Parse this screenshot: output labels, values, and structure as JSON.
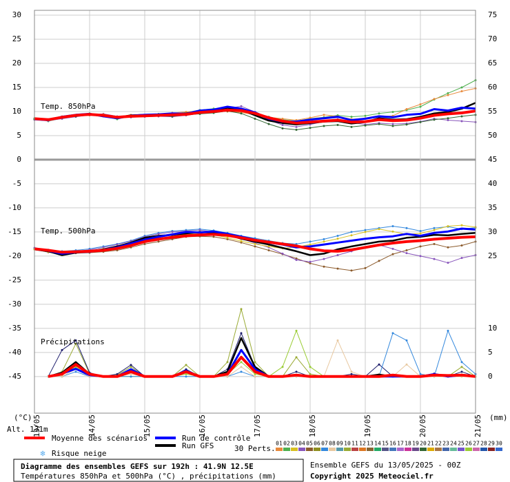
{
  "chart_data": {
    "type": "line",
    "title": "Diagramme des ensembles GEFS sur 192h : 41.9N 12.5E",
    "subtitle": "Températures 850hPa et 500hPa (°C) , précipitations (mm)",
    "run_info": "Ensemble GEFS du 13/05/2025 - 00Z",
    "copyright": "Copyright 2025 Meteociel.fr",
    "annotations": [
      "Temp. 850hPa",
      "Temp. 500hPa",
      "Précipitations"
    ],
    "y_unit": "(°C)",
    "y2_unit": "(mm)",
    "altitude": "Alt. 131m",
    "snow_label": "Risque neige",
    "perts_label": "30 Perts.",
    "categories": [
      "13/05",
      null,
      null,
      null,
      "14/05",
      null,
      null,
      null,
      "15/05",
      null,
      null,
      null,
      "16/05",
      null,
      null,
      null,
      "17/05",
      null,
      null,
      null,
      "18/05",
      null,
      null,
      null,
      "19/05",
      null,
      null,
      null,
      "20/05",
      null,
      null,
      null,
      "21/05"
    ],
    "ylim": [
      -52.6,
      31
    ],
    "yticks": [
      -45,
      -40,
      -35,
      -30,
      -25,
      -20,
      -15,
      -10,
      -5,
      0,
      5,
      10,
      15,
      20,
      25,
      30
    ],
    "y2lim": [
      -7.6,
      76
    ],
    "y2ticks": [
      0,
      5,
      10,
      25,
      30,
      35,
      40,
      45,
      50,
      55,
      60,
      65,
      70,
      75
    ],
    "grid": true,
    "legend": [
      {
        "name": "Moyenne des scénarios",
        "color": "#ff0000"
      },
      {
        "name": "Run de contrôle",
        "color": "#0000ff"
      },
      {
        "name": "Run GFS",
        "color": "#000000"
      }
    ],
    "perts": [
      {
        "label": "01",
        "color": "#e88a3c"
      },
      {
        "label": "02",
        "color": "#4fb04f"
      },
      {
        "label": "03",
        "color": "#d8c020"
      },
      {
        "label": "04",
        "color": "#8855bb"
      },
      {
        "label": "05",
        "color": "#8b5a2b"
      },
      {
        "label": "06",
        "color": "#8f8f20"
      },
      {
        "label": "07",
        "color": "#3388dd"
      },
      {
        "label": "08",
        "color": "#e8c8a0"
      },
      {
        "label": "09",
        "color": "#5599aa"
      },
      {
        "label": "10",
        "color": "#99aa33"
      },
      {
        "label": "11",
        "color": "#bb4444"
      },
      {
        "label": "12",
        "color": "#dd7722"
      },
      {
        "label": "13",
        "color": "#886633"
      },
      {
        "label": "14",
        "color": "#22aa66"
      },
      {
        "label": "15",
        "color": "#555588"
      },
      {
        "label": "16",
        "color": "#4477bb"
      },
      {
        "label": "17",
        "color": "#aa66cc"
      },
      {
        "label": "18",
        "color": "#cc3399"
      },
      {
        "label": "19",
        "color": "#6a4a8a"
      },
      {
        "label": "20",
        "color": "#336633"
      },
      {
        "label": "21",
        "color": "#ddaa00"
      },
      {
        "label": "22",
        "color": "#aa7744"
      },
      {
        "label": "23",
        "color": "#4466aa"
      },
      {
        "label": "24",
        "color": "#66bb99"
      },
      {
        "label": "25",
        "color": "#7755cc"
      },
      {
        "label": "26",
        "color": "#99cc33"
      },
      {
        "label": "27",
        "color": "#cc66aa"
      },
      {
        "label": "28",
        "color": "#2255aa"
      },
      {
        "label": "29",
        "color": "#882222"
      },
      {
        "label": "30",
        "color": "#3366cc"
      }
    ],
    "series": [
      {
        "color": "#4fb04f",
        "values": [
          8.6,
          8.0,
          8.6,
          9.3,
          9.6,
          9.0,
          8.4,
          9.1,
          9.2,
          9.5,
          9.4,
          9.8,
          10.3,
          10.6,
          10.8,
          10.4,
          9.7,
          8.9,
          8.3,
          8.0,
          8.5,
          8.8,
          9.2,
          8.9,
          9.1,
          9.6,
          9.9,
          10.3,
          11,
          12.5,
          13.8,
          15,
          16.5
        ]
      },
      {
        "color": "#8855bb",
        "values": [
          8.3,
          8.1,
          8.5,
          8.9,
          9.3,
          9.5,
          9.0,
          8.8,
          8.9,
          9.0,
          8.9,
          9.2,
          9.6,
          9.9,
          10.6,
          11.1,
          9.9,
          8.2,
          7.2,
          6.8,
          7.3,
          7.9,
          8.4,
          7.7,
          7.3,
          7.6,
          7.4,
          7.5,
          7.9,
          8.5,
          8.2,
          8.0,
          7.8
        ]
      },
      {
        "color": "#e88a3c",
        "values": [
          8.5,
          8.4,
          9.0,
          9.1,
          9.2,
          9.4,
          8.9,
          9.3,
          9.0,
          9.3,
          9.7,
          9.9,
          10.1,
          10.2,
          10.0,
          9.8,
          9.3,
          8.8,
          8.5,
          8.2,
          8.7,
          9.3,
          9.0,
          8.4,
          8.6,
          8.9,
          9.1,
          10.5,
          11.5,
          12.6,
          13.4,
          14.2,
          14.8
        ]
      },
      {
        "color": "#336633",
        "values": [
          8.4,
          8.2,
          8.7,
          9.0,
          9.4,
          9.1,
          8.6,
          8.9,
          9.2,
          9.1,
          9.0,
          9.3,
          9.5,
          9.7,
          10.1,
          9.6,
          8.5,
          7.4,
          6.5,
          6.2,
          6.6,
          7.0,
          7.2,
          6.8,
          7.1,
          7.4,
          7.0,
          7.3,
          7.8,
          8.3,
          8.6,
          9.0,
          9.3
        ]
      },
      {
        "color": "#000000",
        "values": [
          8.5,
          8.3,
          8.7,
          9.2,
          9.4,
          9.1,
          8.7,
          9.2,
          9.3,
          9.2,
          9.4,
          9.6,
          10.0,
          10.3,
          10.8,
          10.4,
          9.2,
          8.1,
          7.6,
          7.3,
          7.6,
          7.9,
          8.0,
          7.5,
          7.8,
          8.6,
          8.3,
          8.4,
          8.9,
          9.6,
          9.9,
          10.6,
          11.8
        ]
      },
      {
        "color": "#0000ff",
        "values": [
          8.4,
          8.2,
          8.9,
          9.3,
          9.5,
          9.0,
          8.6,
          9.1,
          9.3,
          9.4,
          9.6,
          9.5,
          10.2,
          10.4,
          11.0,
          10.6,
          9.8,
          8.5,
          7.9,
          7.9,
          8.3,
          8.6,
          8.9,
          8.2,
          8.5,
          9.0,
          8.8,
          9.3,
          9.5,
          10.5,
          10.2,
          10.8,
          10.6
        ]
      },
      {
        "color": "#ff0000",
        "values": [
          8.5,
          8.3,
          8.8,
          9.2,
          9.4,
          9.2,
          8.8,
          9.0,
          9.1,
          9.2,
          9.3,
          9.4,
          9.8,
          10.0,
          10.3,
          10.2,
          9.6,
          8.7,
          8.0,
          7.6,
          7.8,
          8.0,
          8.2,
          7.8,
          7.9,
          8.3,
          8.1,
          8.2,
          8.6,
          9.2,
          9.5,
          9.7,
          10.1
        ]
      },
      {
        "color": "#3388dd",
        "values": [
          -18.5,
          -18.7,
          -19.0,
          -18.8,
          -18.5,
          -18.0,
          -17.5,
          -16.8,
          -15.8,
          -15.2,
          -14.8,
          -14.6,
          -14.4,
          -14.7,
          -15.2,
          -15.8,
          -16.3,
          -16.8,
          -17.3,
          -17.5,
          -17.0,
          -16.5,
          -15.8,
          -15.0,
          -14.6,
          -14.2,
          -13.8,
          -14.2,
          -14.8,
          -14.2,
          -13.9,
          -14.4,
          -14.1
        ]
      },
      {
        "color": "#8b5a2b",
        "values": [
          -18.6,
          -19.2,
          -19.6,
          -19.4,
          -19.3,
          -19.1,
          -18.8,
          -18.2,
          -17.5,
          -17.0,
          -16.5,
          -16.0,
          -15.9,
          -16.0,
          -16.5,
          -17.2,
          -18.0,
          -18.8,
          -19.6,
          -20.5,
          -21.5,
          -22.2,
          -22.6,
          -23.0,
          -22.5,
          -21.0,
          -19.6,
          -18.8,
          -18.0,
          -17.5,
          -18.2,
          -17.8,
          -17.0
        ]
      },
      {
        "color": "#8855bb",
        "values": [
          -18.3,
          -18.8,
          -19.3,
          -19.0,
          -18.7,
          -18.2,
          -17.6,
          -16.9,
          -16.0,
          -15.4,
          -15.0,
          -14.8,
          -14.6,
          -15.0,
          -15.6,
          -16.4,
          -17.3,
          -18.2,
          -19.5,
          -20.8,
          -21.2,
          -20.6,
          -19.8,
          -19.0,
          -18.2,
          -17.7,
          -18.5,
          -19.4,
          -20.0,
          -20.6,
          -21.4,
          -20.4,
          -19.8
        ]
      },
      {
        "color": "#d8c020",
        "values": [
          -18.6,
          -19.1,
          -19.4,
          -19.1,
          -18.9,
          -18.5,
          -18.0,
          -17.5,
          -16.8,
          -16.4,
          -15.9,
          -15.5,
          -15.3,
          -15.6,
          -16.2,
          -16.9,
          -17.5,
          -18.0,
          -18.4,
          -18.1,
          -17.6,
          -17.0,
          -16.4,
          -15.7,
          -15.0,
          -14.4,
          -14.9,
          -15.5,
          -15.3,
          -14.6,
          -13.8,
          -13.6,
          -14.0
        ]
      },
      {
        "color": "#000000",
        "values": [
          -18.6,
          -19.0,
          -19.8,
          -19.3,
          -19.0,
          -18.6,
          -18.0,
          -17.2,
          -16.2,
          -15.8,
          -15.6,
          -15.3,
          -15.0,
          -15.2,
          -15.6,
          -16.4,
          -17.0,
          -17.6,
          -18.3,
          -19.0,
          -19.8,
          -19.5,
          -18.6,
          -18.0,
          -17.5,
          -17.0,
          -16.8,
          -16.2,
          -16.0,
          -15.6,
          -15.7,
          -15.4,
          -15.2
        ]
      },
      {
        "color": "#0000ff",
        "values": [
          -18.4,
          -18.9,
          -19.5,
          -19.2,
          -19.1,
          -18.7,
          -18.2,
          -17.4,
          -16.6,
          -16.0,
          -15.5,
          -15.0,
          -15.1,
          -14.9,
          -15.4,
          -16.0,
          -16.6,
          -17.2,
          -17.6,
          -18.2,
          -18.0,
          -17.6,
          -17.2,
          -16.8,
          -16.4,
          -16.1,
          -15.9,
          -15.4,
          -15.8,
          -15.2,
          -14.9,
          -14.3,
          -14.5
        ]
      },
      {
        "color": "#ff0000",
        "values": [
          -18.5,
          -18.8,
          -19.2,
          -19.1,
          -19.0,
          -18.8,
          -18.4,
          -17.8,
          -17.0,
          -16.5,
          -16.1,
          -15.8,
          -15.6,
          -15.5,
          -15.7,
          -16.2,
          -16.7,
          -17.1,
          -17.5,
          -17.9,
          -18.5,
          -18.9,
          -19.0,
          -18.7,
          -18.2,
          -17.7,
          -17.3,
          -17.0,
          -16.8,
          -16.5,
          -16.3,
          -16.1,
          -16.0
        ]
      },
      {
        "color": "#99aa33",
        "axis": "y2",
        "values": [
          null,
          0,
          1,
          6.8,
          0.6,
          0,
          0.3,
          2,
          0,
          0,
          0,
          2.4,
          0,
          0,
          3,
          14,
          3,
          0,
          0,
          4,
          0.5,
          0,
          0,
          0,
          0,
          0,
          0,
          0,
          0,
          0.5,
          0,
          2,
          0
        ]
      },
      {
        "color": "#1a1a6a",
        "axis": "y2",
        "values": [
          null,
          0,
          5.5,
          7.5,
          0.8,
          0,
          0.5,
          2.4,
          0,
          0,
          0,
          1.5,
          0,
          0,
          1.5,
          9,
          2,
          0,
          0,
          1,
          0,
          0,
          0,
          0.5,
          0,
          2.5,
          0,
          0,
          0,
          0.6,
          0,
          1,
          0
        ]
      },
      {
        "color": "#99cc33",
        "axis": "y2",
        "values": [
          null,
          0,
          0.3,
          2,
          0,
          0,
          0,
          0,
          0,
          0,
          0,
          0.5,
          0,
          0,
          0.5,
          3,
          0.5,
          0,
          2,
          9.5,
          2,
          0,
          0,
          0,
          0,
          0,
          0,
          0,
          0,
          0,
          0,
          0,
          0
        ]
      },
      {
        "color": "#3388dd",
        "axis": "y2",
        "values": [
          null,
          0,
          0,
          1,
          0,
          0,
          0,
          0,
          0,
          0,
          0,
          0,
          0,
          0,
          0,
          1,
          0,
          0,
          0,
          0,
          0,
          0,
          0,
          0,
          0,
          0,
          9,
          7.5,
          0.5,
          0,
          9.5,
          3,
          0.5
        ]
      },
      {
        "color": "#e8c8a0",
        "axis": "y2",
        "values": [
          null,
          0,
          0,
          1.5,
          0,
          0,
          0,
          0.5,
          0,
          0,
          0,
          1,
          0,
          0,
          0,
          2,
          0,
          0,
          0,
          0,
          0,
          0,
          7.5,
          1,
          0,
          0.5,
          0,
          2.5,
          0,
          0,
          0,
          0,
          0
        ]
      },
      {
        "color": "#000000",
        "axis": "y2",
        "values": [
          null,
          0,
          0.8,
          3,
          0.5,
          0,
          0,
          1.2,
          0,
          0,
          0,
          1,
          0,
          0,
          1,
          8,
          2,
          0,
          0,
          0.3,
          0,
          0,
          0,
          0,
          0,
          0.4,
          0,
          0,
          0,
          0.5,
          0,
          0.4,
          0
        ]
      },
      {
        "color": "#0000ff",
        "axis": "y2",
        "values": [
          null,
          0,
          0.6,
          1.6,
          0.3,
          0,
          0,
          1.5,
          0,
          0,
          0,
          1.2,
          0,
          0,
          0.5,
          5.5,
          1.5,
          0,
          0,
          0.3,
          0,
          0,
          0,
          0,
          0,
          0,
          0,
          0,
          0,
          0.5,
          0,
          0.3,
          0
        ]
      },
      {
        "color": "#ff0000",
        "axis": "y2",
        "values": [
          null,
          0,
          0.5,
          2.5,
          0.5,
          0,
          0,
          1,
          0,
          0,
          0,
          1,
          0,
          0,
          0.5,
          4,
          1,
          0,
          0,
          0.3,
          0,
          0,
          0,
          0,
          0,
          0,
          0.3,
          0,
          0,
          0.3,
          0.2,
          0.3,
          0
        ]
      }
    ]
  }
}
